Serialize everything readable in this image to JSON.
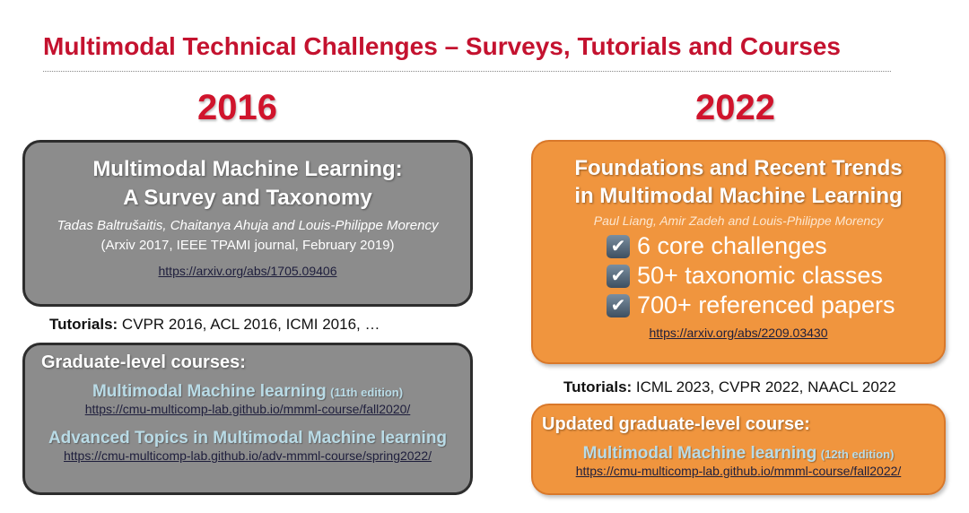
{
  "title": "Multimodal Technical Challenges – Surveys, Tutorials and Courses",
  "left": {
    "year": "2016",
    "survey": {
      "title1": "Multimodal Machine Learning:",
      "title2": "A Survey and Taxonomy",
      "authors": "Tadas Baltrušaitis, Chaitanya Ahuja and Louis-Philippe Morency",
      "venue": "(Arxiv 2017, IEEE TPAMI journal, February 2019)",
      "link": "https://arxiv.org/abs/1705.09406"
    },
    "tutorials": {
      "label": "Tutorials:",
      "text": " CVPR 2016, ACL 2016, ICMI 2016, …"
    },
    "courses": {
      "heading": "Graduate-level courses:",
      "items": [
        {
          "name": "Multimodal Machine learning",
          "edition": "(11th edition)",
          "link": "https://cmu-multicomp-lab.github.io/mmml-course/fall2020/"
        },
        {
          "name": "Advanced Topics in Multimodal Machine learning",
          "edition": "",
          "link": "https://cmu-multicomp-lab.github.io/adv-mmml-course/spring2022/"
        }
      ]
    }
  },
  "right": {
    "year": "2022",
    "survey": {
      "title1": "Foundations and Recent Trends",
      "title2": "in Multimodal Machine Learning",
      "authors": "Paul Liang, Amir Zadeh and Louis-Philippe Morency",
      "checks": [
        "6 core challenges",
        "50+ taxonomic classes",
        "700+ referenced papers"
      ],
      "link": "https://arxiv.org/abs/2209.03430"
    },
    "tutorials": {
      "label": "Tutorials:",
      "text": " ICML 2023, CVPR 2022, NAACL 2022"
    },
    "course": {
      "heading": "Updated graduate-level course:",
      "name": "Multimodal Machine learning",
      "edition": "(12th edition)",
      "link": "https://cmu-multicomp-lab.github.io/mmml-course/fall2022/"
    }
  }
}
